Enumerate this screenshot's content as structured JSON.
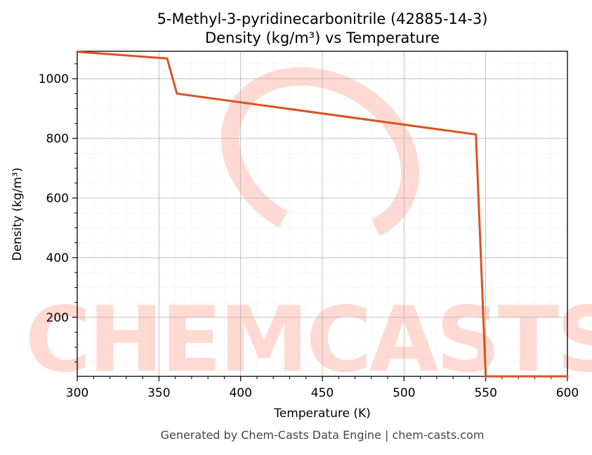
{
  "chart_data": {
    "type": "line",
    "title": "5-Methyl-3-pyridinecarbonitrile (42885-14-3)",
    "subtitle": "Density (kg/m³) vs Temperature",
    "xlabel": "Temperature (K)",
    "ylabel": "Density (kg/m³)",
    "xlim": [
      300,
      600
    ],
    "ylim": [
      2,
      1092
    ],
    "xticks": [
      300,
      350,
      400,
      450,
      500,
      550,
      600
    ],
    "yticks": [
      200,
      400,
      600,
      800,
      1000
    ],
    "grid": true,
    "series": [
      {
        "color": "#d95323",
        "x": [
          300,
          355,
          361,
          544,
          550,
          552,
          600
        ],
        "y": [
          1090,
          1068,
          950,
          813,
          2,
          2,
          2
        ]
      }
    ]
  },
  "watermark": {
    "text": "CHEMCASTS",
    "color": "#ffd9d2"
  },
  "footer": "Generated by Chem-Casts Data Engine | chem-casts.com"
}
